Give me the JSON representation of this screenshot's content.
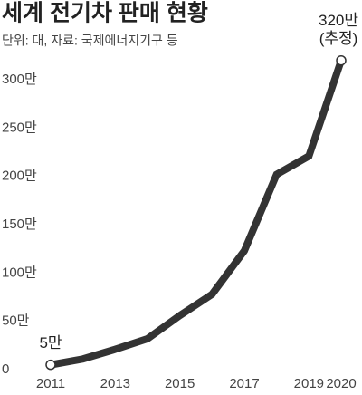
{
  "chart_data": {
    "type": "line",
    "title": "세계 전기차 판매 현황",
    "subtitle": "단위: 대, 자료: 국제에너지기구 등",
    "x": [
      2011,
      2012,
      2013,
      2014,
      2015,
      2016,
      2017,
      2018,
      2019,
      2020
    ],
    "values": [
      5,
      11,
      21,
      32,
      56,
      78,
      123,
      202,
      221,
      320
    ],
    "value_labels": [
      "5만",
      null,
      null,
      null,
      null,
      null,
      null,
      null,
      null,
      "320만 (추정)"
    ],
    "color": "#333333",
    "end_markers": true,
    "grid": false,
    "xlim": [
      2011,
      2020
    ],
    "xticks": [
      2011,
      2013,
      2015,
      2017,
      2019,
      2020
    ],
    "ylim": [
      0,
      320
    ],
    "yticks": [
      0,
      {
        "value": 50,
        "label": "50만"
      },
      {
        "value": 100,
        "label": "100만"
      },
      {
        "value": 150,
        "label": "150만"
      },
      {
        "value": 200,
        "label": "200만"
      },
      {
        "value": 250,
        "label": "250만"
      },
      {
        "value": 300,
        "label": "300만"
      }
    ]
  }
}
